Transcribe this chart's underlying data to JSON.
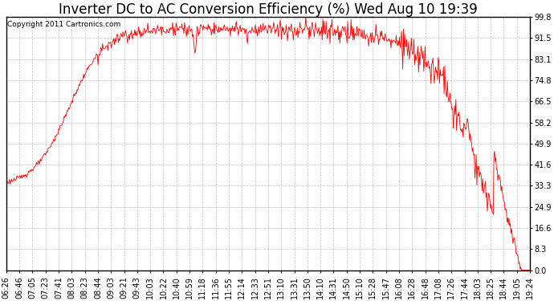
{
  "title": "Inverter DC to AC Conversion Efficiency (%) Wed Aug 10 19:39",
  "copyright": "Copyright 2011 Cartronics.com",
  "line_color": "#ff0000",
  "background_color": "#ffffff",
  "plot_bg_color": "#ffffff",
  "grid_color": "#b0b0b0",
  "yticks": [
    0.0,
    8.3,
    16.6,
    24.9,
    33.3,
    41.6,
    49.9,
    58.2,
    66.5,
    74.8,
    83.1,
    91.5,
    99.8
  ],
  "ylim": [
    0.0,
    99.8
  ],
  "xtick_labels": [
    "06:26",
    "06:46",
    "07:05",
    "07:23",
    "07:41",
    "08:03",
    "08:23",
    "08:44",
    "09:03",
    "09:21",
    "09:43",
    "10:03",
    "10:22",
    "10:40",
    "10:59",
    "11:18",
    "11:36",
    "11:55",
    "12:14",
    "12:33",
    "12:51",
    "13:10",
    "13:31",
    "13:50",
    "14:10",
    "14:31",
    "14:50",
    "15:10",
    "15:28",
    "15:47",
    "16:08",
    "16:28",
    "16:48",
    "17:08",
    "17:26",
    "17:44",
    "18:03",
    "18:25",
    "18:44",
    "19:05",
    "19:24"
  ],
  "title_fontsize": 12,
  "tick_fontsize": 7,
  "copyright_fontsize": 6.5,
  "linewidth": 0.6
}
